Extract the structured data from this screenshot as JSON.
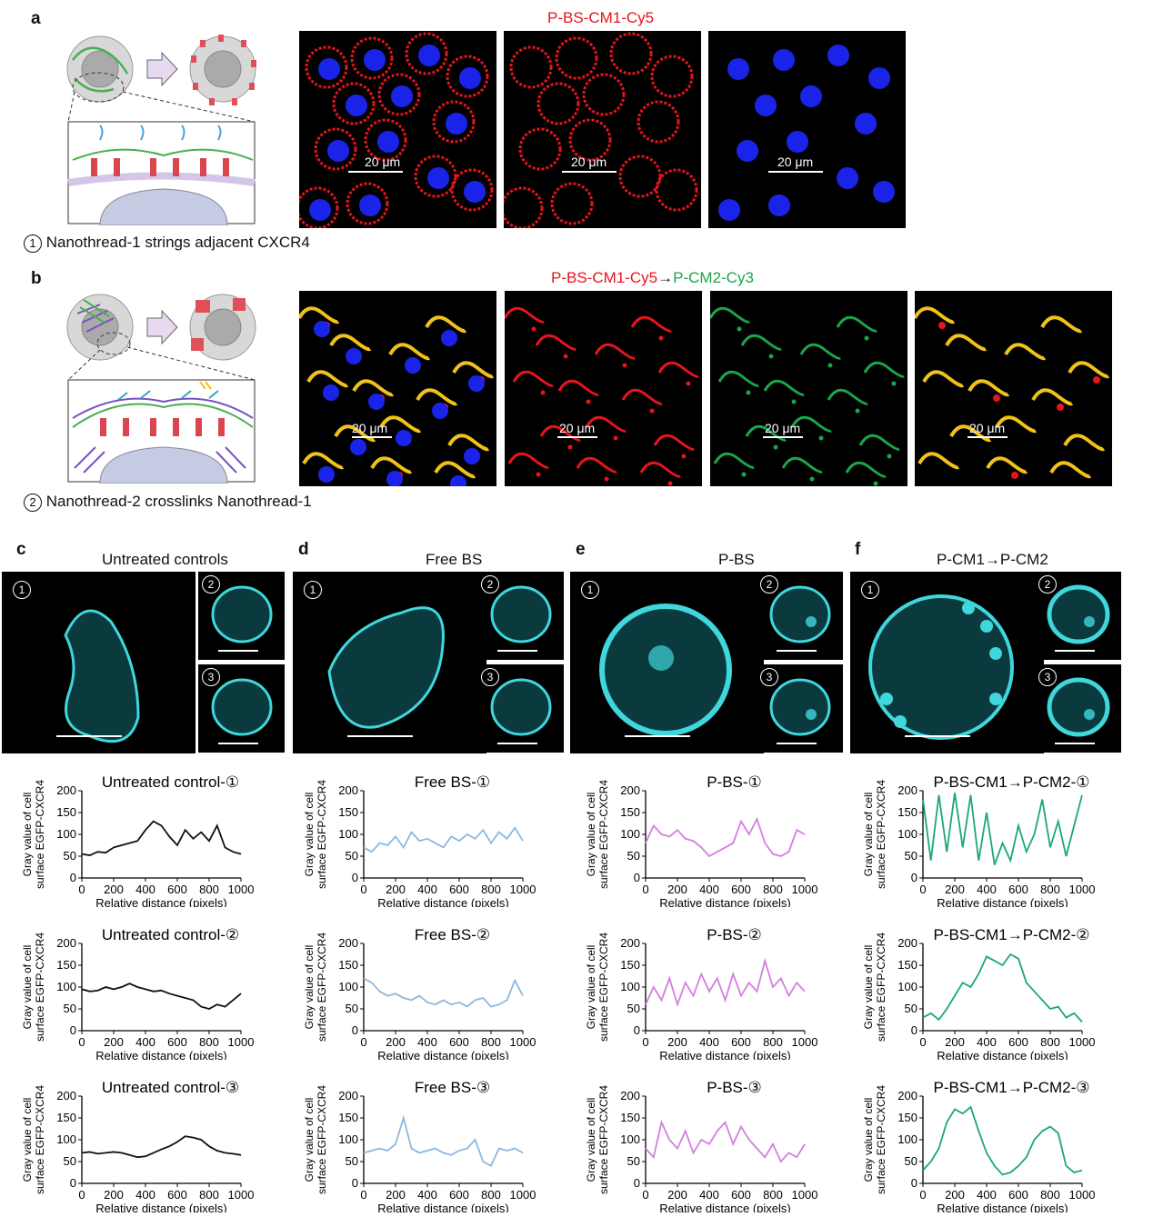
{
  "panels": {
    "a": {
      "letter": "a",
      "title": "P-BS-CM1-Cy5",
      "caption_num": "1",
      "caption": "Nanothread-1 strings adjacent CXCR4",
      "scalebar": "20 μm"
    },
    "b": {
      "letter": "b",
      "title_red": "P-BS-CM1-Cy5",
      "title_arrow": "→",
      "title_green": "P-CM2-Cy3",
      "caption_num": "2",
      "caption": "Nanothread-2 crosslinks Nanothread-1",
      "scalebar": "20 μm"
    },
    "c": {
      "letter": "c",
      "title": "Untreated controls"
    },
    "d": {
      "letter": "d",
      "title": "Free BS"
    },
    "e": {
      "letter": "e",
      "title": "P-BS"
    },
    "f": {
      "letter": "f",
      "title": "P-CM1→P-CM2"
    }
  },
  "cell_nums": [
    "1",
    "2",
    "3"
  ],
  "axis": {
    "ylabel_line1": "Gray value of cell",
    "ylabel_line2": "surface EGFP-CXCR4",
    "xlabel": "Relative distance (pixels)"
  },
  "colors": {
    "c": "#111111",
    "d": "#8db8df",
    "e": "#d47ee0",
    "f": "#1aa873",
    "cyan": "#3fd6dc",
    "red": "#e8141c",
    "green": "#1aa64a",
    "blue": "#1a24e8",
    "yellow": "#f0c21a"
  },
  "chart_data": [
    {
      "type": "line",
      "title": "Untreated control-①",
      "xlabel": "Relative distance (pixels)",
      "ylabel": "Gray value of cell surface EGFP-CXCR4",
      "xlim": [
        0,
        1000
      ],
      "ylim": [
        0,
        200
      ],
      "x": [
        0,
        50,
        100,
        150,
        200,
        250,
        300,
        350,
        400,
        450,
        500,
        550,
        600,
        650,
        700,
        750,
        800,
        850,
        900,
        950,
        1000
      ],
      "series": [
        {
          "values": [
            55,
            52,
            60,
            58,
            70,
            75,
            80,
            85,
            110,
            130,
            120,
            95,
            75,
            110,
            90,
            105,
            85,
            120,
            70,
            60,
            55
          ]
        }
      ]
    },
    {
      "type": "line",
      "title": "Untreated control-②",
      "xlabel": "Relative distance (pixels)",
      "ylabel": "Gray value of cell surface EGFP-CXCR4",
      "xlim": [
        0,
        1000
      ],
      "ylim": [
        0,
        200
      ],
      "x": [
        0,
        50,
        100,
        150,
        200,
        250,
        300,
        350,
        400,
        450,
        500,
        550,
        600,
        650,
        700,
        750,
        800,
        850,
        900,
        950,
        1000
      ],
      "series": [
        {
          "values": [
            95,
            90,
            92,
            100,
            95,
            100,
            108,
            100,
            95,
            90,
            92,
            85,
            80,
            75,
            70,
            55,
            50,
            60,
            55,
            70,
            85
          ]
        }
      ]
    },
    {
      "type": "line",
      "title": "Untreated control-③",
      "xlabel": "Relative distance (pixels)",
      "ylabel": "Gray value of cell surface EGFP-CXCR4",
      "xlim": [
        0,
        1000
      ],
      "ylim": [
        0,
        200
      ],
      "x": [
        0,
        50,
        100,
        150,
        200,
        250,
        300,
        350,
        400,
        450,
        500,
        550,
        600,
        650,
        700,
        750,
        800,
        850,
        900,
        950,
        1000
      ],
      "series": [
        {
          "values": [
            70,
            72,
            68,
            70,
            72,
            70,
            65,
            60,
            62,
            70,
            78,
            85,
            95,
            108,
            105,
            100,
            85,
            75,
            70,
            68,
            65
          ]
        }
      ]
    },
    {
      "type": "line",
      "title": "Free BS-①",
      "xlabel": "Relative distance (pixels)",
      "ylabel": "Gray value of cell surface EGFP-CXCR4",
      "xlim": [
        0,
        1000
      ],
      "ylim": [
        0,
        200
      ],
      "x": [
        0,
        50,
        100,
        150,
        200,
        250,
        300,
        350,
        400,
        450,
        500,
        550,
        600,
        650,
        700,
        750,
        800,
        850,
        900,
        950,
        1000
      ],
      "series": [
        {
          "values": [
            70,
            60,
            80,
            75,
            95,
            70,
            105,
            85,
            90,
            80,
            70,
            95,
            85,
            100,
            90,
            110,
            80,
            105,
            90,
            115,
            85
          ]
        }
      ]
    },
    {
      "type": "line",
      "title": "Free BS-②",
      "xlabel": "Relative distance (pixels)",
      "ylabel": "Gray value of cell surface EGFP-CXCR4",
      "xlim": [
        0,
        1000
      ],
      "ylim": [
        0,
        200
      ],
      "x": [
        0,
        50,
        100,
        150,
        200,
        250,
        300,
        350,
        400,
        450,
        500,
        550,
        600,
        650,
        700,
        750,
        800,
        850,
        900,
        950,
        1000
      ],
      "series": [
        {
          "values": [
            120,
            110,
            90,
            80,
            85,
            75,
            70,
            80,
            65,
            60,
            70,
            60,
            65,
            55,
            70,
            75,
            55,
            60,
            70,
            115,
            80
          ]
        }
      ]
    },
    {
      "type": "line",
      "title": "Free BS-③",
      "xlabel": "Relative distance (pixels)",
      "ylabel": "Gray value of cell surface EGFP-CXCR4",
      "xlim": [
        0,
        1000
      ],
      "ylim": [
        0,
        200
      ],
      "x": [
        0,
        50,
        100,
        150,
        200,
        250,
        300,
        350,
        400,
        450,
        500,
        550,
        600,
        650,
        700,
        750,
        800,
        850,
        900,
        950,
        1000
      ],
      "series": [
        {
          "values": [
            70,
            75,
            80,
            75,
            90,
            150,
            80,
            70,
            75,
            80,
            70,
            65,
            75,
            80,
            100,
            50,
            40,
            80,
            75,
            80,
            70
          ]
        }
      ]
    },
    {
      "type": "line",
      "title": "P-BS-①",
      "xlabel": "Relative distance (pixels)",
      "ylabel": "Gray value of cell surface EGFP-CXCR4",
      "xlim": [
        0,
        1000
      ],
      "ylim": [
        0,
        200
      ],
      "x": [
        0,
        50,
        100,
        150,
        200,
        250,
        300,
        350,
        400,
        450,
        500,
        550,
        600,
        650,
        700,
        750,
        800,
        850,
        900,
        950,
        1000
      ],
      "series": [
        {
          "values": [
            80,
            120,
            100,
            95,
            110,
            90,
            85,
            70,
            50,
            60,
            70,
            80,
            130,
            100,
            135,
            80,
            55,
            50,
            60,
            110,
            100
          ]
        }
      ]
    },
    {
      "type": "line",
      "title": "P-BS-②",
      "xlabel": "Relative distance (pixels)",
      "ylabel": "Gray value of cell surface EGFP-CXCR4",
      "xlim": [
        0,
        1000
      ],
      "ylim": [
        0,
        200
      ],
      "x": [
        0,
        50,
        100,
        150,
        200,
        250,
        300,
        350,
        400,
        450,
        500,
        550,
        600,
        650,
        700,
        750,
        800,
        850,
        900,
        950,
        1000
      ],
      "series": [
        {
          "values": [
            60,
            100,
            70,
            120,
            60,
            110,
            80,
            130,
            90,
            120,
            70,
            130,
            80,
            110,
            90,
            160,
            100,
            120,
            80,
            110,
            90
          ]
        }
      ]
    },
    {
      "type": "line",
      "title": "P-BS-③",
      "xlabel": "Relative distance (pixels)",
      "ylabel": "Gray value of cell surface EGFP-CXCR4",
      "xlim": [
        0,
        1000
      ],
      "ylim": [
        0,
        200
      ],
      "x": [
        0,
        50,
        100,
        150,
        200,
        250,
        300,
        350,
        400,
        450,
        500,
        550,
        600,
        650,
        700,
        750,
        800,
        850,
        900,
        950,
        1000
      ],
      "series": [
        {
          "values": [
            80,
            60,
            140,
            100,
            80,
            120,
            70,
            100,
            90,
            120,
            140,
            90,
            130,
            100,
            80,
            60,
            90,
            50,
            70,
            60,
            90
          ]
        }
      ]
    },
    {
      "type": "line",
      "title": "P-BS-CM1→P-CM2-①",
      "xlabel": "Relative distance (pixels)",
      "ylabel": "Gray value of cell surface EGFP-CXCR4",
      "xlim": [
        0,
        1000
      ],
      "ylim": [
        0,
        200
      ],
      "x": [
        0,
        50,
        100,
        150,
        200,
        250,
        300,
        350,
        400,
        450,
        500,
        550,
        600,
        650,
        700,
        750,
        800,
        850,
        900,
        950,
        1000
      ],
      "series": [
        {
          "values": [
            180,
            40,
            190,
            60,
            195,
            70,
            190,
            40,
            150,
            30,
            80,
            40,
            120,
            60,
            100,
            180,
            70,
            130,
            50,
            120,
            190
          ]
        }
      ]
    },
    {
      "type": "line",
      "title": "P-BS-CM1→P-CM2-②",
      "xlabel": "Relative distance (pixels)",
      "ylabel": "Gray value of cell surface EGFP-CXCR4",
      "xlim": [
        0,
        1000
      ],
      "ylim": [
        0,
        200
      ],
      "x": [
        0,
        50,
        100,
        150,
        200,
        250,
        300,
        350,
        400,
        450,
        500,
        550,
        600,
        650,
        700,
        750,
        800,
        850,
        900,
        950,
        1000
      ],
      "series": [
        {
          "values": [
            30,
            40,
            25,
            50,
            80,
            110,
            100,
            130,
            170,
            160,
            150,
            175,
            165,
            110,
            90,
            70,
            50,
            55,
            30,
            40,
            20
          ]
        }
      ]
    },
    {
      "type": "line",
      "title": "P-BS-CM1→P-CM2-③",
      "xlabel": "Relative distance (pixels)",
      "ylabel": "Gray value of cell surface EGFP-CXCR4",
      "xlim": [
        0,
        1000
      ],
      "ylim": [
        0,
        200
      ],
      "x": [
        0,
        50,
        100,
        150,
        200,
        250,
        300,
        350,
        400,
        450,
        500,
        550,
        600,
        650,
        700,
        750,
        800,
        850,
        900,
        950,
        1000
      ],
      "series": [
        {
          "values": [
            30,
            50,
            80,
            140,
            170,
            160,
            175,
            120,
            70,
            40,
            20,
            25,
            40,
            60,
            100,
            120,
            130,
            115,
            40,
            25,
            30
          ]
        }
      ]
    }
  ]
}
